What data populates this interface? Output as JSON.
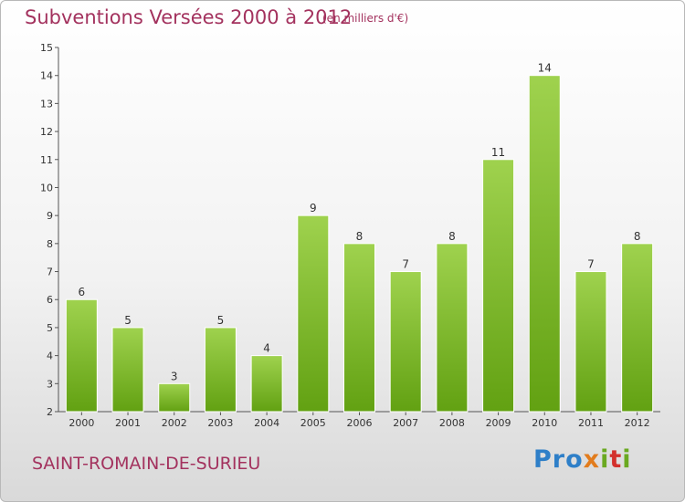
{
  "header": {
    "title": "Subventions Versées 2000 à 2012",
    "subtitle": "(en milliers d'€)"
  },
  "footer": {
    "place": "SAINT-ROMAIN-DE-SURIEU",
    "logo": {
      "p1": "Pro",
      "p2": "x",
      "p3": "i",
      "p4": "t",
      "p5": "i"
    }
  },
  "colors": {
    "bar_top": "#9fd24e",
    "bar_bottom": "#62a112",
    "title": "#a3325e"
  },
  "chart_data": {
    "type": "bar",
    "title": "Subventions Versées 2000 à 2012",
    "subtitle": "(en milliers d'€)",
    "categories": [
      "2000",
      "2001",
      "2002",
      "2003",
      "2004",
      "2005",
      "2006",
      "2007",
      "2008",
      "2009",
      "2010",
      "2011",
      "2012"
    ],
    "values": [
      6,
      5,
      3,
      5,
      4,
      9,
      8,
      7,
      8,
      11,
      14,
      7,
      8
    ],
    "ylim": [
      2,
      15
    ],
    "yticks": [
      2,
      3,
      4,
      5,
      6,
      7,
      8,
      9,
      10,
      11,
      12,
      13,
      14,
      15
    ],
    "grid": false,
    "data_labels": true
  }
}
